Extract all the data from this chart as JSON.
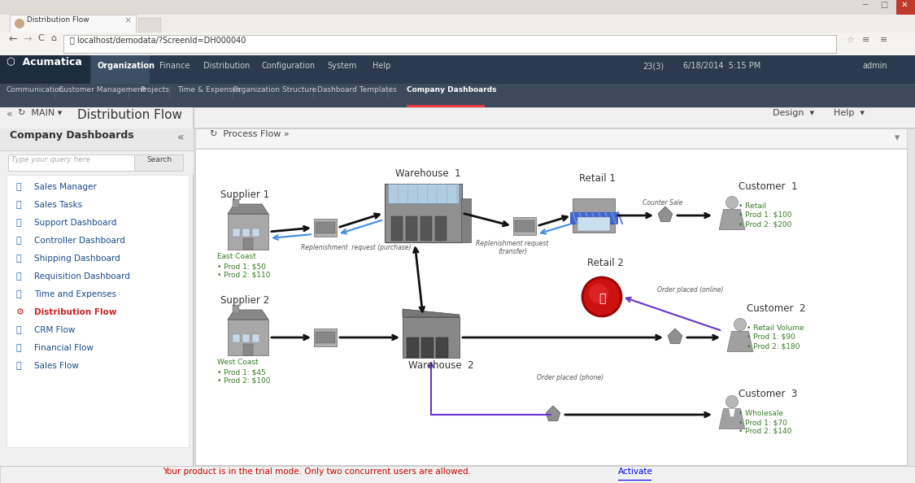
{
  "title": "Distribution Flow",
  "browser_tab": "Distribution Flow",
  "url": "localhost/demodata/?ScreenId=DH000040",
  "nav_items": [
    "Organization",
    "Finance",
    "Distribution",
    "Configuration",
    "System",
    "Help"
  ],
  "top_nav": [
    "Communication",
    "Customer Management",
    "Projects",
    "Time & Expenses",
    "Organization Structure",
    "Dashboard Templates",
    "Company Dashboards"
  ],
  "sidebar_items": [
    "Sales Manager",
    "Sales Tasks",
    "Support Dashboard",
    "Controller Dashboard",
    "Shipping Dashboard",
    "Requisition Dashboard",
    "Time and Expenses",
    "Distribution Flow",
    "CRM Flow",
    "Financial Flow",
    "Sales Flow"
  ],
  "sidebar_icons": [
    "📊",
    "✅",
    "👤",
    "📈",
    "🌐",
    "📄",
    "📝",
    "⚙️",
    "🧩",
    "📉",
    "🛍️"
  ],
  "supplier1": {
    "label": "Supplier 1",
    "region": "East Coast",
    "prod1": "$50",
    "prod2": "$110"
  },
  "supplier2": {
    "label": "Supplier 2",
    "region": "West Coast",
    "prod1": "$45",
    "prod2": "$100"
  },
  "warehouse1": {
    "label": "Warehouse  1"
  },
  "warehouse2": {
    "label": "Warehouse  2"
  },
  "retail1": {
    "label": "Retail 1"
  },
  "retail2": {
    "label": "Retail 2"
  },
  "customer1": {
    "label": "Customer  1",
    "type": "Retail",
    "prod1": "$100",
    "prod2": "$200"
  },
  "customer2": {
    "label": "Customer  2",
    "type": "Retail Volume",
    "prod1": "$90",
    "prod2": "$180"
  },
  "customer3": {
    "label": "Customer  3",
    "type": "Wholesale",
    "prod1": "$70",
    "prod2": "$140"
  },
  "green_color": "#3a7a2a",
  "blue_arrow": "#4a90e2",
  "purple_arrow": "#6633cc",
  "footer_text": "Your product is in the trial mode. Only two concurrent users are allowed.",
  "footer_link": "Activate",
  "footer_color": "#cc0000",
  "chrome_bg": "#d6d2ca",
  "tab_bg": "#f0ede8",
  "addr_bg": "#f5f3f0",
  "acum_nav_bg": "#2b3a4e",
  "acum_logo_bg": "#1e2d3e",
  "acum_active_tab": "#3d4f64",
  "subnav_bg": "#3d4a5c",
  "content_bg": "#e5e5e5",
  "sidebar_bg": "#f0f0f0",
  "panel_bg": "#ffffff",
  "panel_header_bg": "#f5f5f5"
}
